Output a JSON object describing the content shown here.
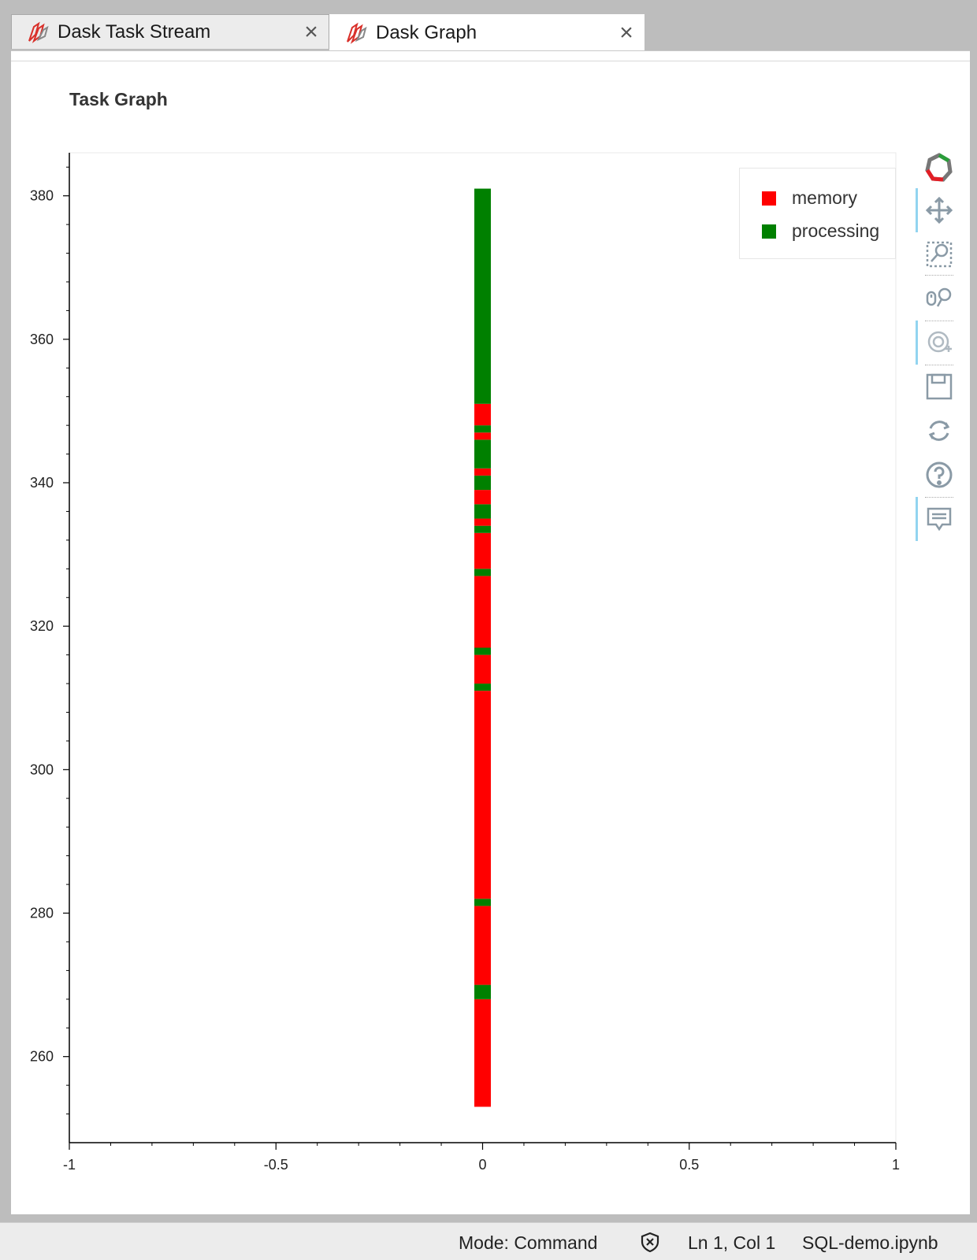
{
  "tabs": [
    {
      "label": "Dask Task Stream",
      "close": "×",
      "icon": "dask-logo-icon",
      "active": false
    },
    {
      "label": "Dask Graph",
      "close": "×",
      "icon": "dask-logo-icon",
      "active": true
    }
  ],
  "panel": {
    "title": "Task Graph"
  },
  "toolbar": {
    "tools": [
      "bokeh-logo-icon",
      "pan-icon",
      "box-zoom-icon",
      "wheel-zoom-icon",
      "lasso-icon",
      "save-icon",
      "reset-icon",
      "help-icon",
      "hover-icon"
    ]
  },
  "legend": [
    {
      "label": "memory",
      "color": "#ff0000"
    },
    {
      "label": "processing",
      "color": "#008000"
    }
  ],
  "chart_data": {
    "type": "bar",
    "title": "Task Graph",
    "xlim": [
      -1,
      1
    ],
    "ylim": [
      248,
      386
    ],
    "x_ticks": [
      -1,
      -0.5,
      0,
      0.5,
      1
    ],
    "x_tick_labels": [
      "-1",
      "-0.5",
      "0",
      "0.5",
      "1"
    ],
    "y_ticks": [
      260,
      280,
      300,
      320,
      340,
      360,
      380
    ],
    "y_tick_labels": [
      "260",
      "280",
      "300",
      "320",
      "340",
      "360",
      "380"
    ],
    "grid": false,
    "legend_position": "top-right",
    "x": 0,
    "segments": [
      {
        "y0": 253,
        "y1": 268,
        "state": "memory"
      },
      {
        "y0": 268,
        "y1": 270,
        "state": "processing"
      },
      {
        "y0": 270,
        "y1": 281,
        "state": "memory"
      },
      {
        "y0": 281,
        "y1": 282,
        "state": "processing"
      },
      {
        "y0": 282,
        "y1": 311,
        "state": "memory"
      },
      {
        "y0": 311,
        "y1": 312,
        "state": "processing"
      },
      {
        "y0": 312,
        "y1": 316,
        "state": "memory"
      },
      {
        "y0": 316,
        "y1": 317,
        "state": "processing"
      },
      {
        "y0": 317,
        "y1": 327,
        "state": "memory"
      },
      {
        "y0": 327,
        "y1": 328,
        "state": "processing"
      },
      {
        "y0": 328,
        "y1": 333,
        "state": "memory"
      },
      {
        "y0": 333,
        "y1": 334,
        "state": "processing"
      },
      {
        "y0": 334,
        "y1": 335,
        "state": "memory"
      },
      {
        "y0": 335,
        "y1": 337,
        "state": "processing"
      },
      {
        "y0": 337,
        "y1": 339,
        "state": "memory"
      },
      {
        "y0": 339,
        "y1": 341,
        "state": "processing"
      },
      {
        "y0": 341,
        "y1": 342,
        "state": "memory"
      },
      {
        "y0": 342,
        "y1": 346,
        "state": "processing"
      },
      {
        "y0": 346,
        "y1": 347,
        "state": "memory"
      },
      {
        "y0": 347,
        "y1": 348,
        "state": "processing"
      },
      {
        "y0": 348,
        "y1": 351,
        "state": "memory"
      },
      {
        "y0": 351,
        "y1": 381,
        "state": "processing"
      }
    ],
    "colors": {
      "memory": "#ff0000",
      "processing": "#008000"
    }
  },
  "statusbar": {
    "mode": "Mode: Command",
    "kernel_icon": "shield-x-icon",
    "position": "Ln 1, Col 1",
    "filename": "SQL-demo.ipynb"
  }
}
